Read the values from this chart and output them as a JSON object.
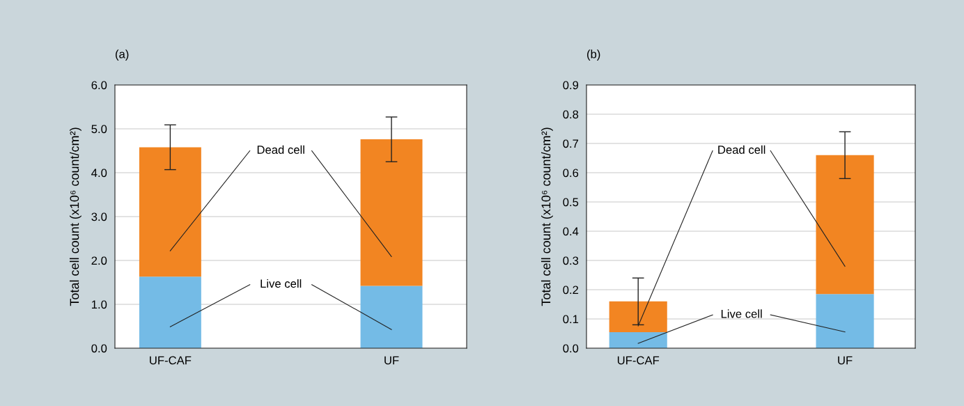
{
  "chart_data": [
    {
      "type": "bar",
      "title": "(a)",
      "ylabel": "Total cell count (x10⁶ count/cm²)",
      "categories": [
        "UF-CAF",
        "UF"
      ],
      "stacked": true,
      "series": [
        {
          "name": "Live cell",
          "color": "#74bbe6",
          "values": [
            1.63,
            1.42
          ]
        },
        {
          "name": "Dead cell",
          "color": "#f28522",
          "values": [
            2.95,
            3.34
          ],
          "errors": [
            0.51,
            0.51
          ]
        }
      ],
      "ylim": [
        0,
        6
      ],
      "yticks": [
        {
          "value": 0,
          "label": "0.0"
        },
        {
          "value": 1,
          "label": "1.0"
        },
        {
          "value": 2,
          "label": "2.0"
        },
        {
          "value": 3,
          "label": "3.0"
        },
        {
          "value": 4,
          "label": "4.0"
        },
        {
          "value": 5,
          "label": "5.0"
        },
        {
          "value": 6,
          "label": "6.0"
        }
      ],
      "grid": "y",
      "legend": false
    },
    {
      "type": "bar",
      "title": "(b)",
      "ylabel": "Total cell count (x10⁶ count/cm²)",
      "categories": [
        "UF-CAF",
        "UF"
      ],
      "stacked": true,
      "series": [
        {
          "name": "Live cell",
          "color": "#74bbe6",
          "values": [
            0.055,
            0.185
          ]
        },
        {
          "name": "Dead cell",
          "color": "#f28522",
          "values": [
            0.105,
            0.475
          ],
          "errors": [
            0.08,
            0.08
          ]
        }
      ],
      "ylim": [
        0,
        0.9
      ],
      "yticks": [
        {
          "value": 0,
          "label": "0.0"
        },
        {
          "value": 0.1,
          "label": "0.1"
        },
        {
          "value": 0.2,
          "label": "0.2"
        },
        {
          "value": 0.3,
          "label": "0.3"
        },
        {
          "value": 0.4,
          "label": "0.4"
        },
        {
          "value": 0.5,
          "label": "0.5"
        },
        {
          "value": 0.6,
          "label": "0.6"
        },
        {
          "value": 0.7,
          "label": "0.7"
        },
        {
          "value": 0.8,
          "label": "0.8"
        },
        {
          "value": 0.9,
          "label": "0.9"
        }
      ],
      "grid": "y",
      "legend": false
    }
  ]
}
